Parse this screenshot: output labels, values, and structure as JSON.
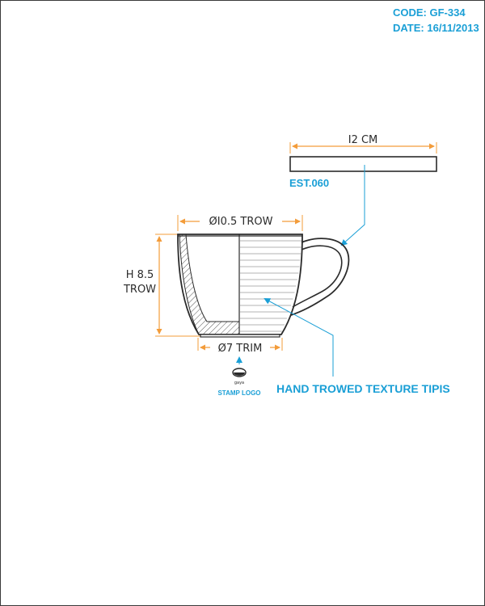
{
  "header": {
    "code": "CODE: GF-334",
    "date": "DATE: 16/11/2013"
  },
  "saucer": {
    "width_label": "I2 CM",
    "est_label": "EST.060"
  },
  "cup": {
    "top_diameter_label": "ØI0.5 TROW",
    "height_label_line1": "H 8.5",
    "height_label_line2": "TROW",
    "base_diameter_label": "Ø7 TRIM"
  },
  "stamp": {
    "small_text": "gaya",
    "label": "STAMP LOGO"
  },
  "texture_label": "HAND TROWED TEXTURE TIPIS",
  "colors": {
    "accent": "#1a9fd6",
    "dimension": "#f39c3a",
    "outline": "#2b2b2b"
  }
}
